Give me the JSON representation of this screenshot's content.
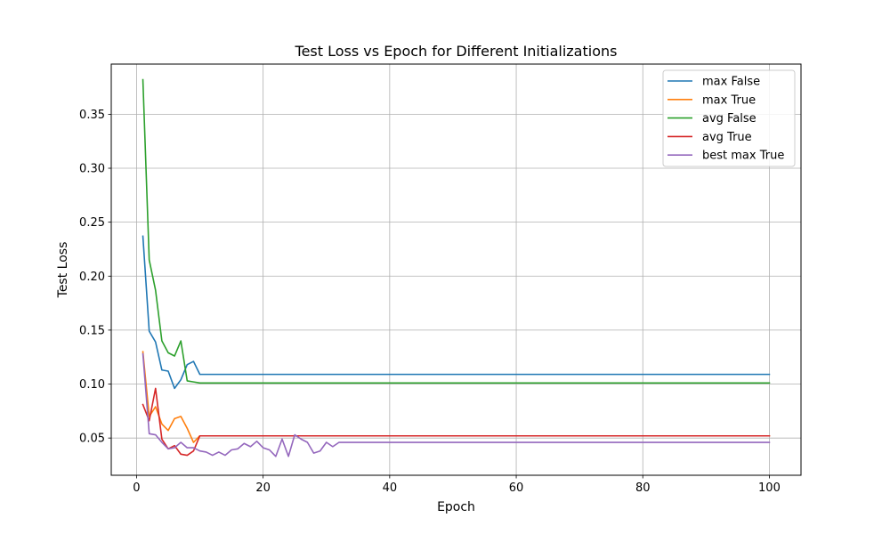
{
  "chart_data": {
    "type": "line",
    "title": "Test Loss vs Epoch for Different Initializations",
    "xlabel": "Epoch",
    "ylabel": "Test Loss",
    "xlim": [
      -4,
      105
    ],
    "ylim": [
      0.0155,
      0.3965
    ],
    "xticks": [
      0,
      20,
      40,
      60,
      80,
      100
    ],
    "yticks": [
      0.05,
      0.1,
      0.15,
      0.2,
      0.25,
      0.3,
      0.35
    ],
    "xtick_labels": [
      "0",
      "20",
      "40",
      "60",
      "80",
      "100"
    ],
    "ytick_labels": [
      "0.05",
      "0.10",
      "0.15",
      "0.20",
      "0.25",
      "0.30",
      "0.35"
    ],
    "grid": true,
    "legend_position": "top-right",
    "series": [
      {
        "name": "max False",
        "color": "#1f77b4",
        "x": [
          1,
          2,
          3,
          4,
          5,
          6,
          7,
          8,
          9,
          10,
          100
        ],
        "y": [
          0.237,
          0.149,
          0.139,
          0.113,
          0.112,
          0.096,
          0.104,
          0.118,
          0.121,
          0.109,
          0.109
        ]
      },
      {
        "name": "max True",
        "color": "#ff7f0e",
        "x": [
          1,
          2,
          3,
          4,
          5,
          6,
          7,
          8,
          9,
          10,
          100
        ],
        "y": [
          0.13,
          0.07,
          0.079,
          0.063,
          0.057,
          0.068,
          0.07,
          0.059,
          0.046,
          0.052,
          0.052
        ]
      },
      {
        "name": "avg False",
        "color": "#2ca02c",
        "x": [
          1,
          2,
          3,
          4,
          5,
          6,
          7,
          8,
          9,
          10,
          100
        ],
        "y": [
          0.382,
          0.215,
          0.187,
          0.14,
          0.129,
          0.126,
          0.14,
          0.103,
          0.102,
          0.101,
          0.101
        ]
      },
      {
        "name": "avg True",
        "color": "#d62728",
        "x": [
          1,
          2,
          3,
          4,
          5,
          6,
          7,
          8,
          9,
          10,
          100
        ],
        "y": [
          0.081,
          0.066,
          0.096,
          0.049,
          0.04,
          0.043,
          0.035,
          0.034,
          0.038,
          0.052,
          0.052
        ]
      },
      {
        "name": "best max True",
        "color": "#9467bd",
        "x": [
          1,
          2,
          3,
          4,
          5,
          6,
          7,
          8,
          9,
          10,
          11,
          12,
          13,
          14,
          15,
          16,
          17,
          18,
          19,
          20,
          21,
          22,
          23,
          24,
          25,
          26,
          27,
          28,
          29,
          30,
          31,
          32,
          100
        ],
        "y": [
          0.128,
          0.054,
          0.053,
          0.046,
          0.04,
          0.041,
          0.046,
          0.041,
          0.041,
          0.038,
          0.037,
          0.034,
          0.037,
          0.034,
          0.039,
          0.04,
          0.045,
          0.042,
          0.047,
          0.041,
          0.039,
          0.033,
          0.049,
          0.033,
          0.053,
          0.049,
          0.046,
          0.036,
          0.038,
          0.046,
          0.042,
          0.046,
          0.046
        ]
      }
    ]
  }
}
